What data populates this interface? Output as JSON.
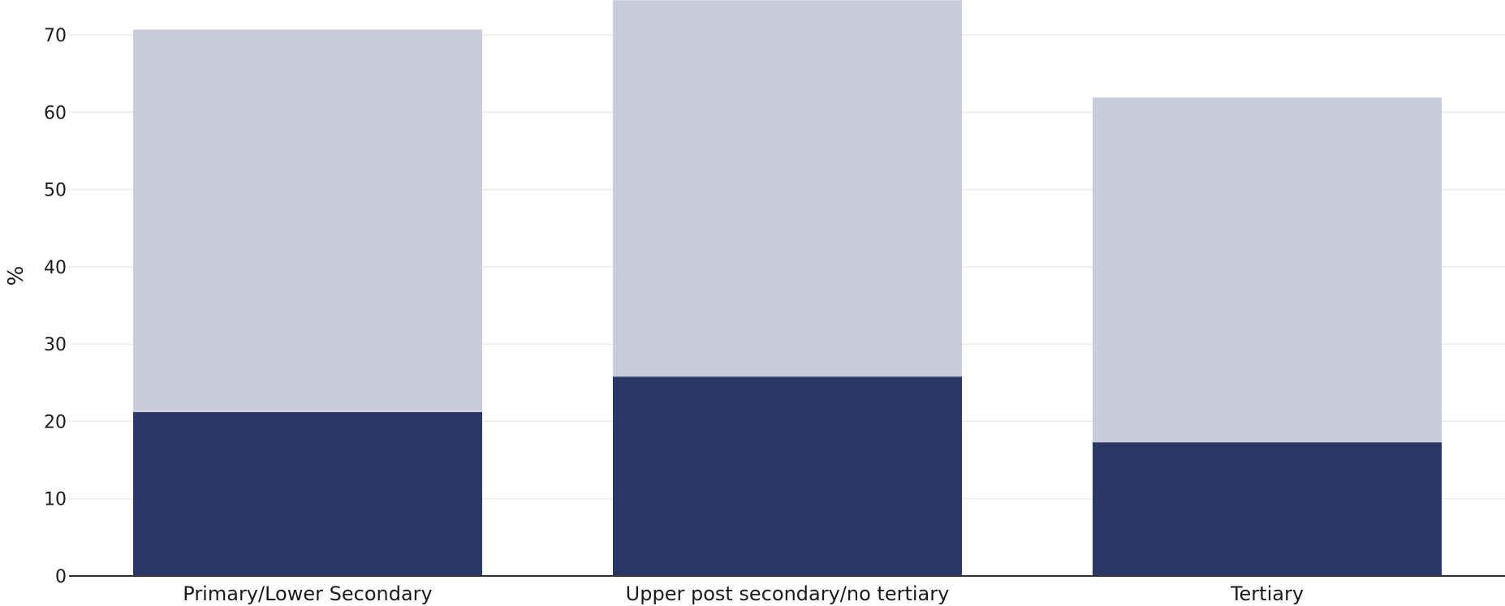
{
  "chart_data": {
    "type": "bar",
    "stacked": true,
    "title": "",
    "xlabel": "",
    "ylabel": "%",
    "ylim": [
      0,
      74
    ],
    "yticks": [
      0,
      10,
      20,
      30,
      40,
      50,
      60,
      70
    ],
    "grid": true,
    "legend": "none",
    "categories": [
      "Primary/Lower Secondary",
      "Upper post secondary/no tertiary",
      "Tertiary"
    ],
    "series": [
      {
        "values": [
          21.2,
          25.8,
          17.3
        ],
        "color": "#2b3765"
      },
      {
        "values": [
          49.5,
          48.7,
          44.6
        ],
        "color": "#c9ccd9"
      }
    ]
  }
}
